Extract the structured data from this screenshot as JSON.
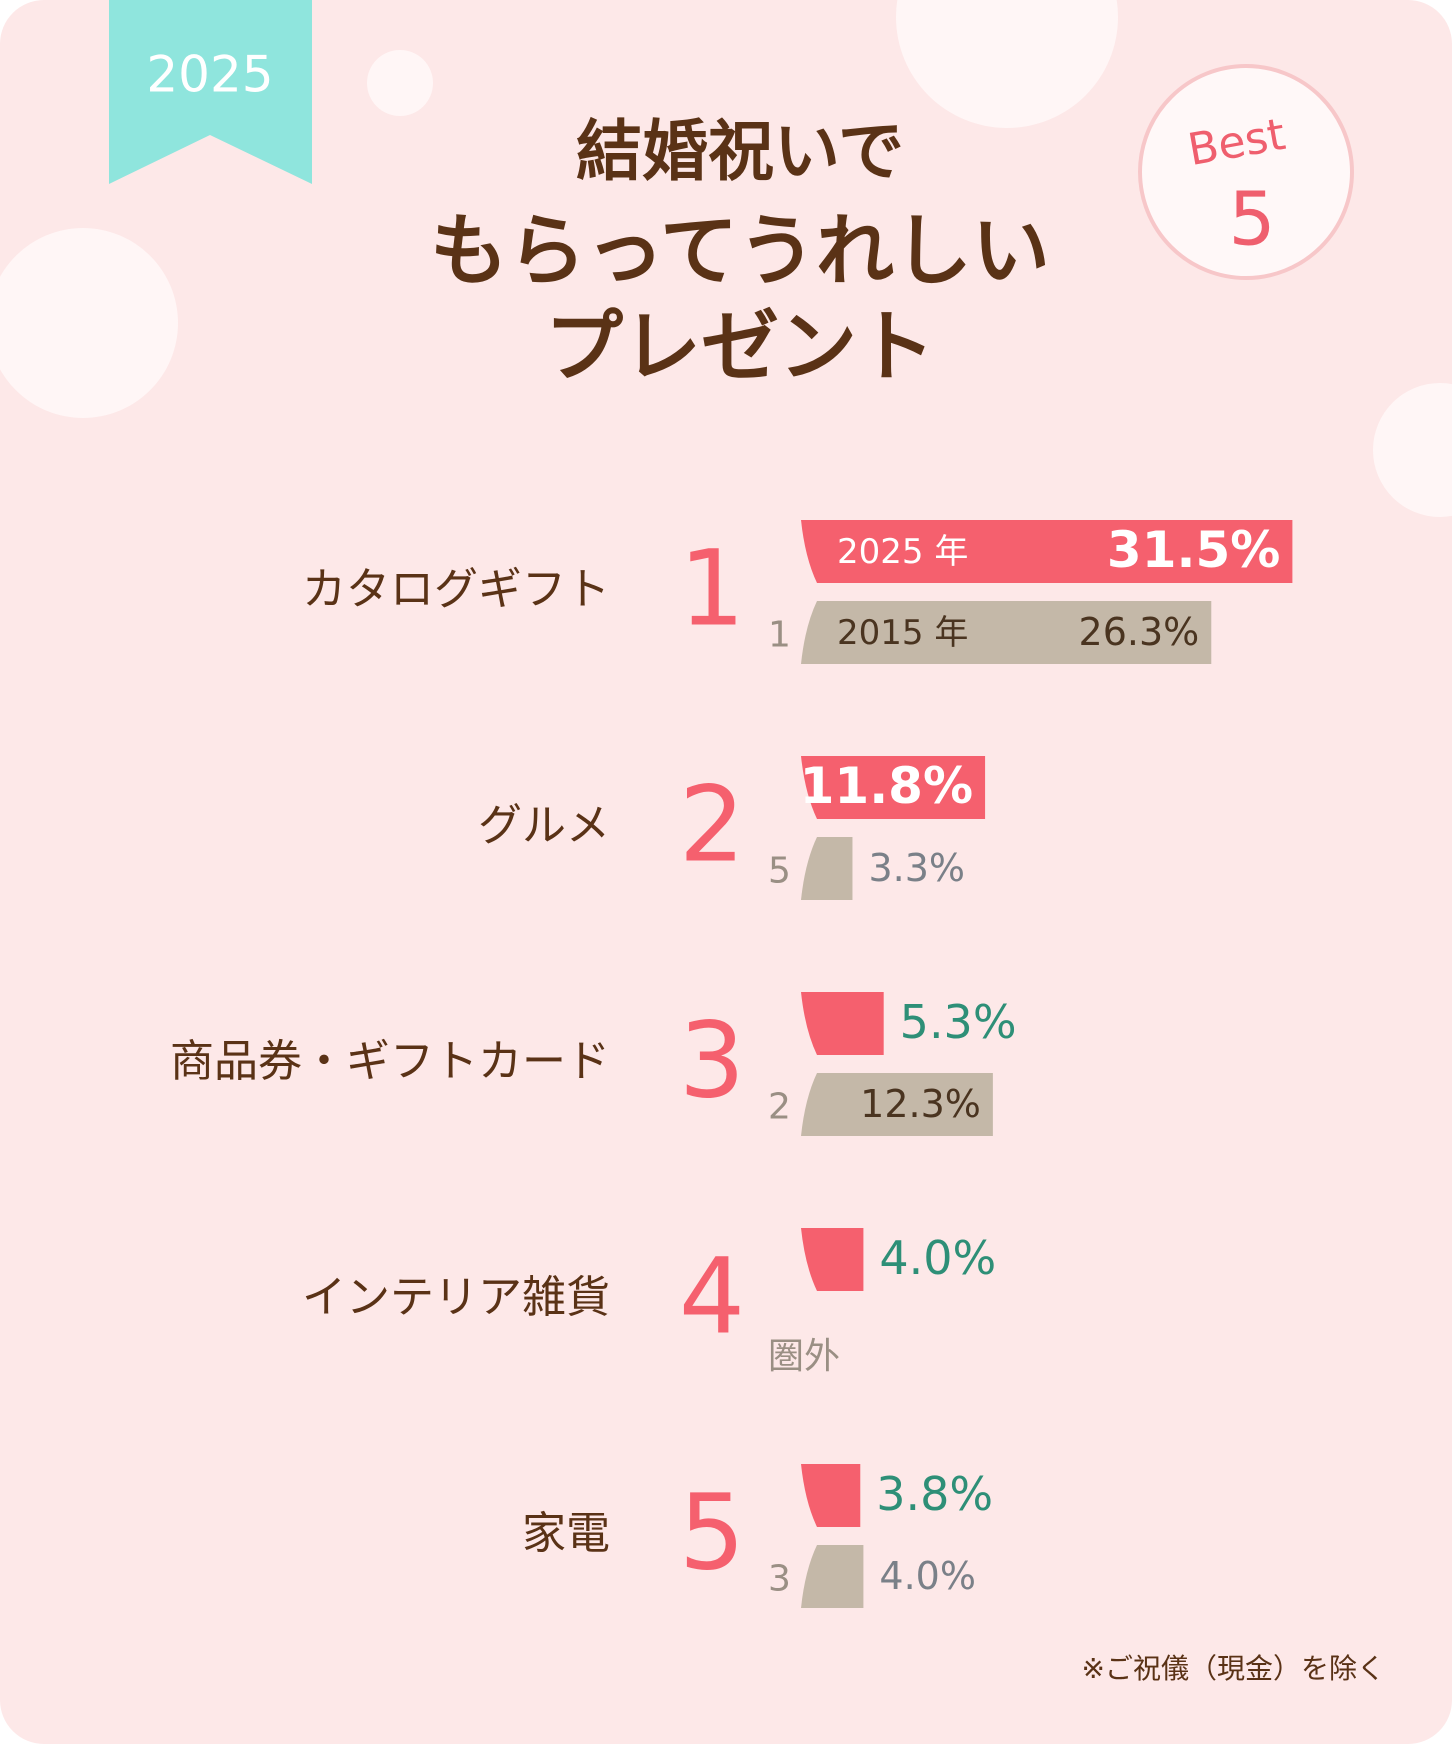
{
  "badge": "2025",
  "best": {
    "label": "Best",
    "number": "5"
  },
  "title_lines": [
    "結婚祝いで",
    "もらってうれしい",
    "プレゼント"
  ],
  "chart_data": {
    "type": "bar",
    "categories": [
      "カタログギフト",
      "グルメ",
      "商品券・ギフトカード",
      "インテリア雑貨",
      "家電"
    ],
    "ranks": [
      1,
      2,
      3,
      4,
      5
    ],
    "previous_ranks": [
      1,
      5,
      2,
      "圏外",
      3
    ],
    "series": [
      {
        "name": "2025 年",
        "color": "#f5606e",
        "values": [
          31.5,
          11.8,
          5.3,
          4.0,
          3.8
        ],
        "value_labels": [
          "31.5%",
          "11.8%",
          "5.3%",
          "4.0%",
          "3.8%"
        ]
      },
      {
        "name": "2015 年",
        "color": "#c4b8a8",
        "values": [
          26.3,
          3.3,
          12.3,
          null,
          4.0
        ],
        "value_labels": [
          "26.3%",
          "3.3%",
          "12.3%",
          null,
          "4.0%"
        ]
      }
    ]
  },
  "footnote": "※ご祝儀（現金）を除く"
}
